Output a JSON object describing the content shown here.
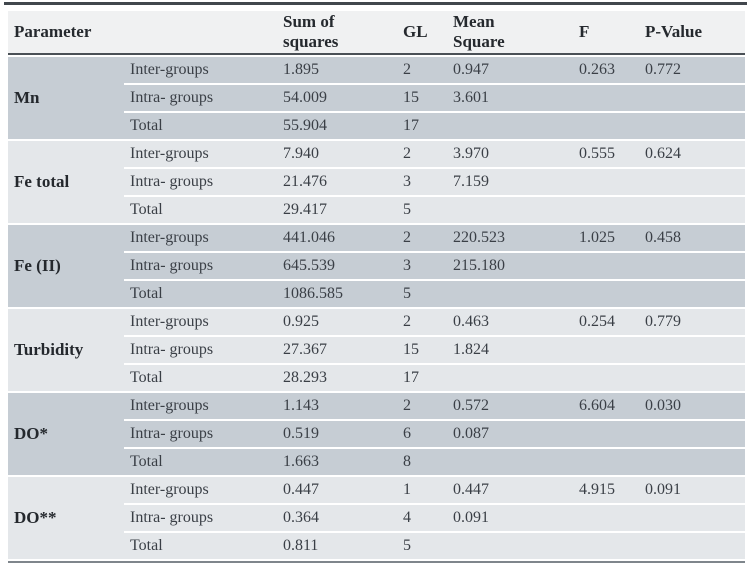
{
  "table": {
    "headers": {
      "parameter": "Parameter",
      "ss": "Sum of squares",
      "gl": "GL",
      "ms": "Mean Square",
      "f": "F",
      "p": "P-Value"
    },
    "groups": [
      {
        "parameter": "Mn",
        "rows": [
          {
            "label": "Inter-groups",
            "ss": "1.895",
            "gl": "2",
            "ms": "0.947",
            "f": "0.263",
            "p": "0.772"
          },
          {
            "label": "Intra- groups",
            "ss": "54.009",
            "gl": "15",
            "ms": "3.601",
            "f": "",
            "p": ""
          },
          {
            "label": "Total",
            "ss": "55.904",
            "gl": "17",
            "ms": "",
            "f": "",
            "p": ""
          }
        ]
      },
      {
        "parameter": "Fe total",
        "rows": [
          {
            "label": "Inter-groups",
            "ss": "7.940",
            "gl": "2",
            "ms": "3.970",
            "f": "0.555",
            "p": "0.624"
          },
          {
            "label": "Intra- groups",
            "ss": "21.476",
            "gl": "3",
            "ms": "7.159",
            "f": "",
            "p": ""
          },
          {
            "label": "Total",
            "ss": "29.417",
            "gl": "5",
            "ms": "",
            "f": "",
            "p": ""
          }
        ]
      },
      {
        "parameter": "Fe (II)",
        "rows": [
          {
            "label": "Inter-groups",
            "ss": "441.046",
            "gl": "2",
            "ms": "220.523",
            "f": "1.025",
            "p": "0.458"
          },
          {
            "label": "Intra- groups",
            "ss": "645.539",
            "gl": "3",
            "ms": "215.180",
            "f": "",
            "p": ""
          },
          {
            "label": "Total",
            "ss": "1086.585",
            "gl": "5",
            "ms": "",
            "f": "",
            "p": ""
          }
        ]
      },
      {
        "parameter": "Turbidity",
        "rows": [
          {
            "label": "Inter-groups",
            "ss": "0.925",
            "gl": "2",
            "ms": "0.463",
            "f": "0.254",
            "p": "0.779"
          },
          {
            "label": "Intra- groups",
            "ss": "27.367",
            "gl": "15",
            "ms": "1.824",
            "f": "",
            "p": ""
          },
          {
            "label": "Total",
            "ss": "28.293",
            "gl": "17",
            "ms": "",
            "f": "",
            "p": ""
          }
        ]
      },
      {
        "parameter": "DO*",
        "rows": [
          {
            "label": "Inter-groups",
            "ss": "1.143",
            "gl": "2",
            "ms": "0.572",
            "f": "6.604",
            "p": "0.030"
          },
          {
            "label": "Intra- groups",
            "ss": "0.519",
            "gl": "6",
            "ms": "0.087",
            "f": "",
            "p": ""
          },
          {
            "label": "Total",
            "ss": "1.663",
            "gl": "8",
            "ms": "",
            "f": "",
            "p": ""
          }
        ]
      },
      {
        "parameter": "DO**",
        "rows": [
          {
            "label": "Inter-groups",
            "ss": "0.447",
            "gl": "1",
            "ms": "0.447",
            "f": "4.915",
            "p": "0.091"
          },
          {
            "label": "Intra- groups",
            "ss": "0.364",
            "gl": "4",
            "ms": "0.091",
            "f": "",
            "p": ""
          },
          {
            "label": "Total",
            "ss": "0.811",
            "gl": "5",
            "ms": "",
            "f": "",
            "p": ""
          }
        ]
      }
    ],
    "colors": {
      "group_dark_bg": "#c6cdd4",
      "group_light_bg": "#e4e7ea",
      "header_bg": "#f0f1f2",
      "rule_dark": "#41474d",
      "rule_bottom": "#7f868c",
      "text": "#3a3f46"
    }
  }
}
